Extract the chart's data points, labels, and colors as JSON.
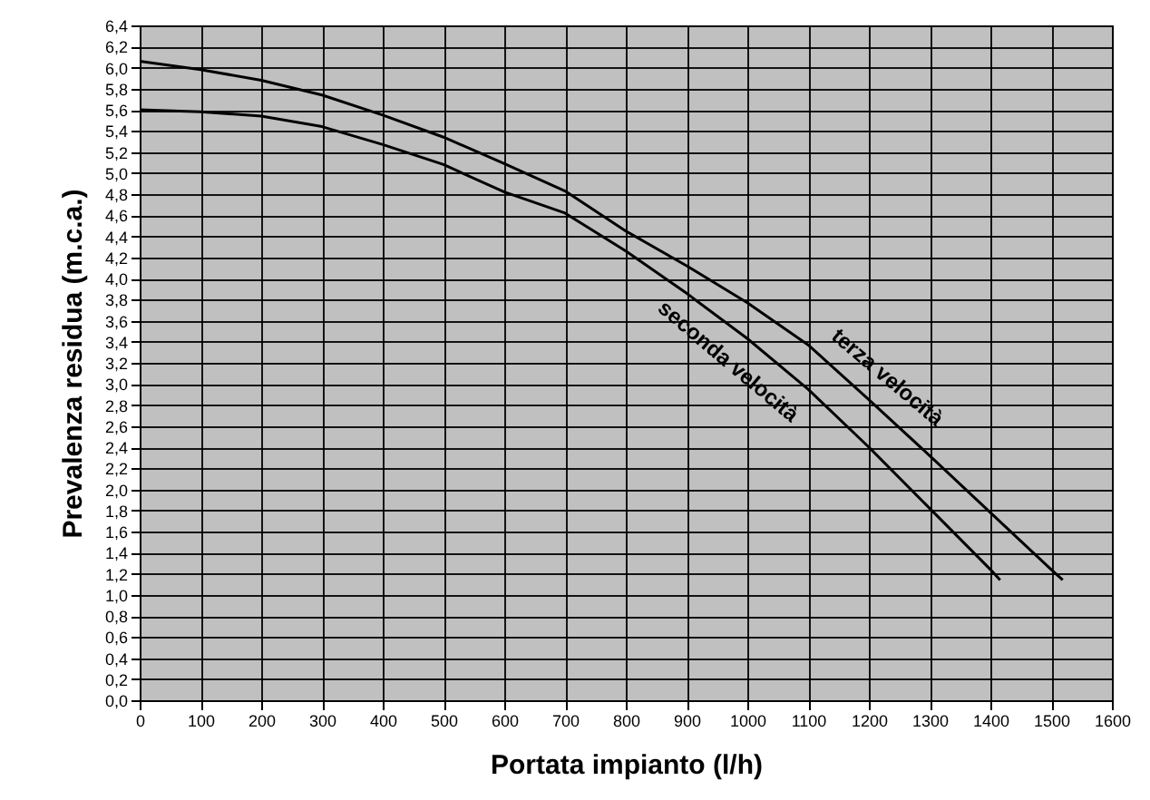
{
  "chart_data": {
    "type": "line",
    "xlabel": "Portata impianto (l/h)",
    "ylabel": "Prevalenza residua (m.c.a.)",
    "xlim": [
      0,
      1600
    ],
    "xticks": [
      0,
      100,
      200,
      300,
      400,
      500,
      600,
      700,
      800,
      900,
      1000,
      1100,
      1200,
      1300,
      1400,
      1500,
      1600
    ],
    "ylim": [
      0,
      6.4
    ],
    "yticks": [
      {
        "value": 0,
        "label": "0,0"
      },
      {
        "value": 0.2,
        "label": "0,2"
      },
      {
        "value": 0.4,
        "label": "0,4"
      },
      {
        "value": 0.6,
        "label": "0,6"
      },
      {
        "value": 0.8,
        "label": "0,8"
      },
      {
        "value": 1,
        "label": "1,0"
      },
      {
        "value": 1.2,
        "label": "1,2"
      },
      {
        "value": 1.4,
        "label": "1,4"
      },
      {
        "value": 1.6,
        "label": "1,6"
      },
      {
        "value": 1.8,
        "label": "1,8"
      },
      {
        "value": 2,
        "label": "2,0"
      },
      {
        "value": 2.2,
        "label": "2,2"
      },
      {
        "value": 2.4,
        "label": "2,4"
      },
      {
        "value": 2.6,
        "label": "2,6"
      },
      {
        "value": 2.8,
        "label": "2,8"
      },
      {
        "value": 3,
        "label": "3,0"
      },
      {
        "value": 3.2,
        "label": "3,2"
      },
      {
        "value": 3.4,
        "label": "3,4"
      },
      {
        "value": 3.6,
        "label": "3,6"
      },
      {
        "value": 3.8,
        "label": "3,8"
      },
      {
        "value": 4,
        "label": "4,0"
      },
      {
        "value": 4.2,
        "label": "4,2"
      },
      {
        "value": 4.4,
        "label": "4,4"
      },
      {
        "value": 4.6,
        "label": "4,6"
      },
      {
        "value": 4.8,
        "label": "4,8"
      },
      {
        "value": 5,
        "label": "5,0"
      },
      {
        "value": 5.2,
        "label": "5,2"
      },
      {
        "value": 5.4,
        "label": "5,4"
      },
      {
        "value": 5.6,
        "label": "5,6"
      },
      {
        "value": 5.8,
        "label": "5,8"
      },
      {
        "value": 6,
        "label": "6,0"
      },
      {
        "value": 6.2,
        "label": "6,2"
      },
      {
        "value": 6.4,
        "label": "6,4"
      }
    ],
    "grid": true,
    "marker": "none",
    "line_style": "solid",
    "series": [
      {
        "name": "terza velocità",
        "color": "#000000",
        "x": [
          0,
          100,
          200,
          300,
          400,
          500,
          600,
          700,
          800,
          900,
          1000,
          1100,
          1200,
          1300,
          1400,
          1500,
          1519
        ],
        "values": [
          6.06,
          5.98,
          5.88,
          5.74,
          5.55,
          5.34,
          5.09,
          4.83,
          4.45,
          4.12,
          3.77,
          3.37,
          2.85,
          2.32,
          1.78,
          1.24,
          1.14
        ]
      },
      {
        "name": "seconda velocità",
        "color": "#000000",
        "x": [
          0,
          100,
          200,
          300,
          400,
          500,
          600,
          700,
          800,
          900,
          1000,
          1100,
          1200,
          1300,
          1400,
          1416
        ],
        "values": [
          5.6,
          5.58,
          5.54,
          5.44,
          5.27,
          5.08,
          4.82,
          4.62,
          4.26,
          3.86,
          3.43,
          2.95,
          2.4,
          1.82,
          1.24,
          1.14
        ]
      }
    ]
  }
}
